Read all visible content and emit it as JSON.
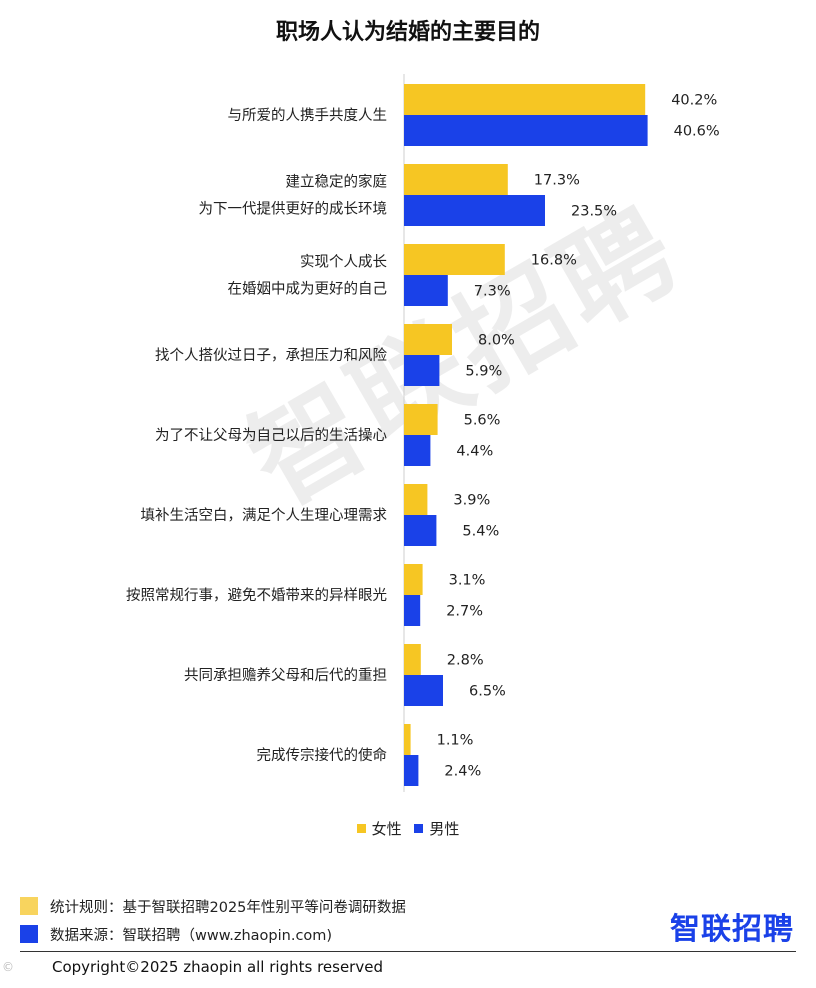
{
  "chart_data": {
    "type": "bar",
    "orientation": "horizontal",
    "title": "职场人认为结婚的主要目的",
    "categories": [
      [
        "与所爱的人携手共度人生"
      ],
      [
        "建立稳定的家庭",
        "为下一代提供更好的成长环境"
      ],
      [
        "实现个人成长",
        "在婚姻中成为更好的自己"
      ],
      [
        "找个人搭伙过日子，承担压力和风险"
      ],
      [
        "为了不让父母为自己以后的生活操心"
      ],
      [
        "填补生活空白，满足个人生理心理需求"
      ],
      [
        "按照常规行事，避免不婚带来的异样眼光"
      ],
      [
        "共同承担赡养父母和后代的重担"
      ],
      [
        "完成传宗接代的使命"
      ]
    ],
    "series": [
      {
        "name": "女性",
        "color": "#F6C623",
        "values": [
          40.2,
          17.3,
          16.8,
          8.0,
          5.6,
          3.9,
          3.1,
          2.8,
          1.1
        ]
      },
      {
        "name": "男性",
        "color": "#1A41E8",
        "values": [
          40.6,
          23.5,
          7.3,
          5.9,
          4.4,
          5.4,
          2.7,
          6.5,
          2.4
        ]
      }
    ],
    "value_suffix": "%",
    "legend": "bottom-center",
    "grid": false
  },
  "watermark": "智联招聘",
  "footnotes": [
    {
      "text": "统计规则：基于智联招聘2025年性别平等问卷调研数据",
      "color": "#F8D45E"
    },
    {
      "text": "数据来源：智联招聘（www.zhaopin.com)",
      "color": "#1A41E8"
    }
  ],
  "logo": "智联招聘",
  "copyright": "Copyright©2025 zhaopin all rights reserved",
  "corner_mark": "©"
}
